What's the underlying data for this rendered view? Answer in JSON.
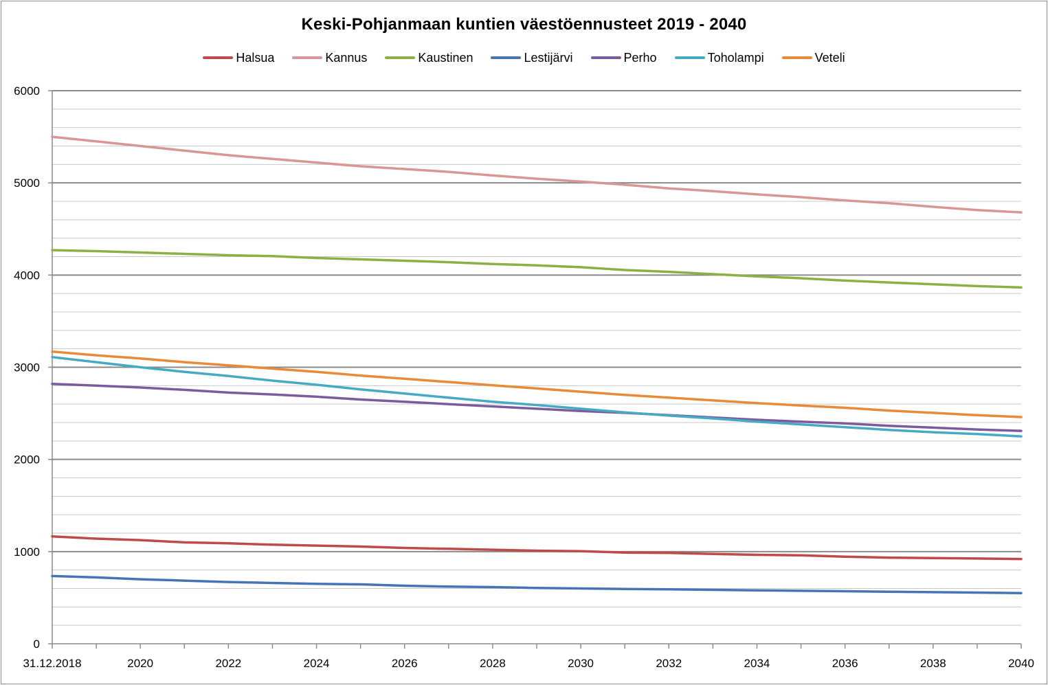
{
  "chart_data": {
    "type": "line",
    "title": "Keski-Pohjanmaan kuntien väestöennusteet 2019 - 2040",
    "xlabel": "",
    "ylabel": "",
    "ylim": [
      0,
      6000
    ],
    "y_ticks": [
      0,
      1000,
      2000,
      3000,
      4000,
      5000,
      6000
    ],
    "y_tick_labels": [
      "0",
      "1000",
      "2000",
      "3000",
      "4000",
      "5000",
      "6000"
    ],
    "x": [
      "31.12.2018",
      "2019",
      "2020",
      "2021",
      "2022",
      "2023",
      "2024",
      "2025",
      "2026",
      "2027",
      "2028",
      "2029",
      "2030",
      "2031",
      "2032",
      "2033",
      "2034",
      "2035",
      "2036",
      "2037",
      "2038",
      "2039",
      "2040"
    ],
    "x_tick_labels": [
      "31.12.2018",
      "2020",
      "2022",
      "2024",
      "2026",
      "2028",
      "2030",
      "2032",
      "2034",
      "2036",
      "2038",
      "2040"
    ],
    "grid": "horizontal",
    "legend_position": "top",
    "series": [
      {
        "name": "Halsua",
        "color": "#be4b48",
        "values": [
          1165,
          1140,
          1125,
          1100,
          1090,
          1075,
          1065,
          1055,
          1040,
          1030,
          1020,
          1010,
          1005,
          990,
          985,
          975,
          965,
          960,
          945,
          935,
          930,
          925,
          920
        ]
      },
      {
        "name": "Kannus",
        "color": "#d99694",
        "values": [
          5500,
          5450,
          5400,
          5350,
          5300,
          5260,
          5220,
          5180,
          5150,
          5120,
          5080,
          5045,
          5015,
          4980,
          4940,
          4910,
          4875,
          4845,
          4810,
          4780,
          4740,
          4705,
          4680
        ]
      },
      {
        "name": "Kaustinen",
        "color": "#8cb043",
        "values": [
          4270,
          4260,
          4245,
          4230,
          4215,
          4205,
          4185,
          4170,
          4155,
          4140,
          4120,
          4105,
          4085,
          4055,
          4035,
          4010,
          3985,
          3965,
          3940,
          3920,
          3900,
          3880,
          3865
        ]
      },
      {
        "name": "Lestijärvi",
        "color": "#4774b5",
        "values": [
          735,
          720,
          700,
          685,
          670,
          660,
          650,
          645,
          630,
          620,
          615,
          605,
          600,
          595,
          590,
          585,
          580,
          575,
          570,
          565,
          560,
          555,
          550
        ]
      },
      {
        "name": "Perho",
        "color": "#7b5b9e",
        "values": [
          2820,
          2800,
          2780,
          2755,
          2725,
          2705,
          2680,
          2650,
          2625,
          2600,
          2575,
          2550,
          2525,
          2505,
          2480,
          2455,
          2430,
          2410,
          2390,
          2365,
          2345,
          2325,
          2310
        ]
      },
      {
        "name": "Toholampi",
        "color": "#46aac4",
        "values": [
          3110,
          3055,
          3000,
          2950,
          2905,
          2855,
          2810,
          2760,
          2715,
          2670,
          2625,
          2590,
          2550,
          2510,
          2475,
          2445,
          2410,
          2380,
          2350,
          2320,
          2295,
          2275,
          2250
        ]
      },
      {
        "name": "Veteli",
        "color": "#e98a38",
        "values": [
          3170,
          3130,
          3095,
          3055,
          3020,
          2985,
          2950,
          2910,
          2875,
          2840,
          2805,
          2770,
          2735,
          2700,
          2670,
          2640,
          2610,
          2585,
          2560,
          2530,
          2505,
          2480,
          2460
        ]
      }
    ]
  }
}
